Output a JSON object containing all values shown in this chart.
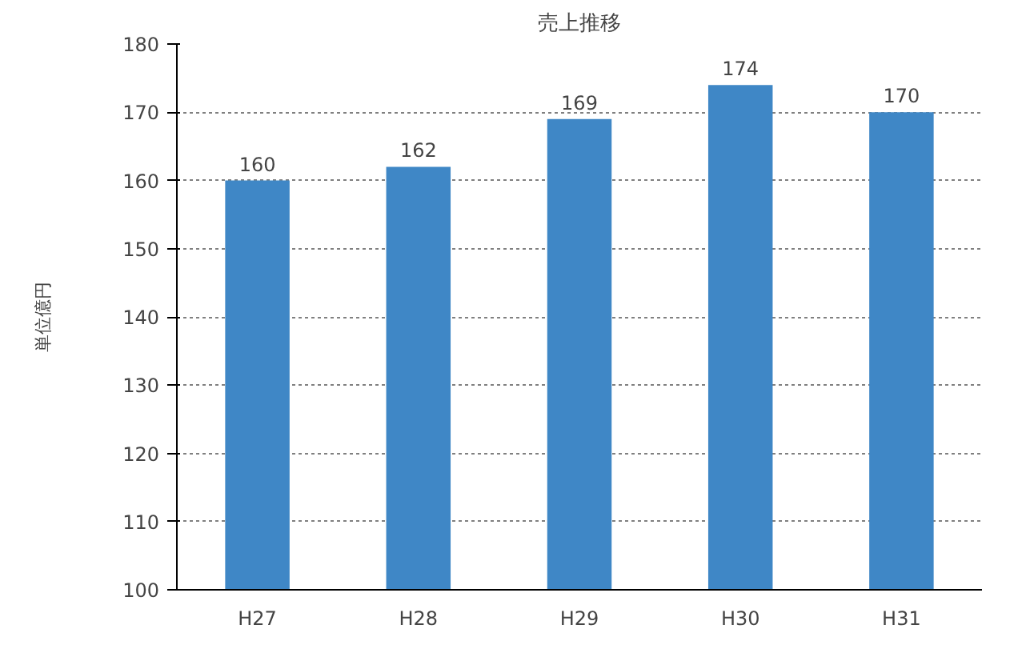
{
  "chart_data": {
    "type": "bar",
    "title": "売上推移",
    "ylabel": "単位億円",
    "categories": [
      "H27",
      "H28",
      "H29",
      "H30",
      "H31"
    ],
    "values": [
      160,
      162,
      169,
      174,
      170
    ],
    "color": "#3f87c6",
    "ylim": [
      100,
      180
    ],
    "yticks": [
      100,
      110,
      120,
      130,
      140,
      150,
      160,
      170,
      180
    ],
    "grid": "y",
    "data_labels": true
  }
}
